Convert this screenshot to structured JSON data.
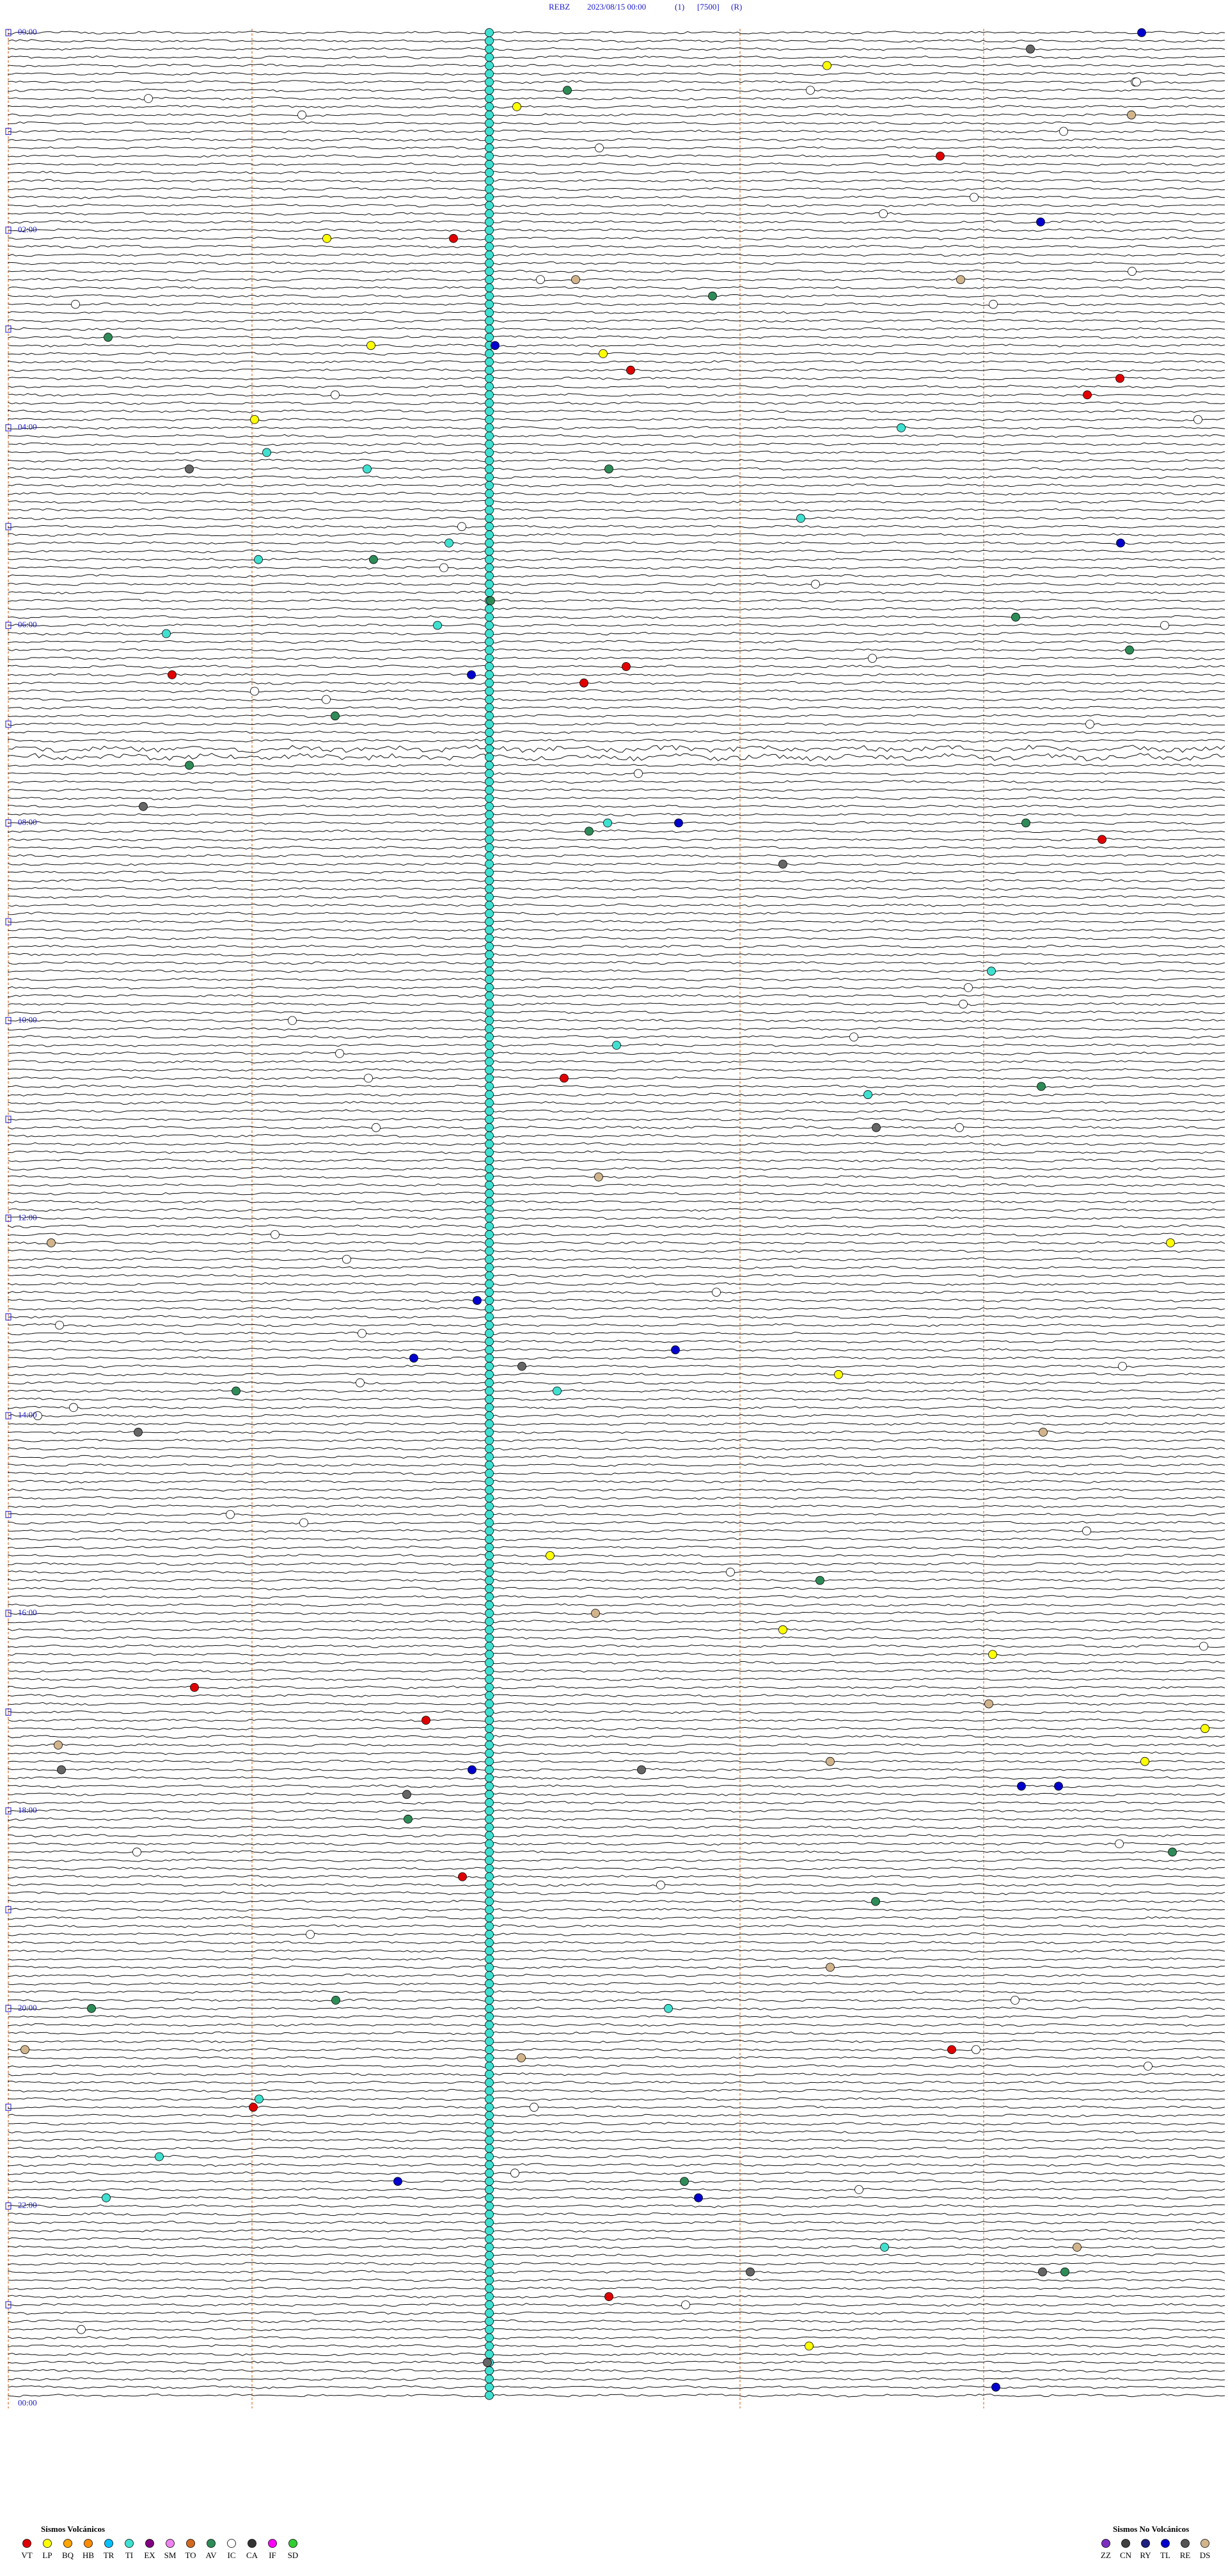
{
  "header": {
    "station": "REBZ",
    "datetime": "2023/08/15 00:00",
    "channel": "(1)",
    "scale": "[7500]",
    "mode": "(R)"
  },
  "hour_labels": [
    "00:00",
    "02:00",
    "04:00",
    "06:00",
    "08:00",
    "10:00",
    "12:00",
    "14:00",
    "16:00",
    "18:00",
    "20:00",
    "22:00",
    "00:00"
  ],
  "legend_volcanic": {
    "title": "Sismos Volcánicos",
    "items": [
      {
        "code": "VT",
        "color": "#e00000"
      },
      {
        "code": "LP",
        "color": "#ffff00"
      },
      {
        "code": "BQ",
        "color": "#ffa500"
      },
      {
        "code": "HB",
        "color": "#ff8c00"
      },
      {
        "code": "TR",
        "color": "#00bfff"
      },
      {
        "code": "TI",
        "color": "#40e0d0"
      },
      {
        "code": "EX",
        "color": "#800080"
      },
      {
        "code": "SM",
        "color": "#ee82ee"
      },
      {
        "code": "TO",
        "color": "#d2691e"
      },
      {
        "code": "AV",
        "color": "#2e8b57"
      },
      {
        "code": "IC",
        "color": "#ffffff"
      },
      {
        "code": "CA",
        "color": "#333333"
      },
      {
        "code": "IF",
        "color": "#ff00ff"
      },
      {
        "code": "SD",
        "color": "#32cd32"
      }
    ]
  },
  "legend_non_volcanic": {
    "title": "Sismos No Volcánicos",
    "items": [
      {
        "code": "ZZ",
        "color": "#7b2fbf"
      },
      {
        "code": "CN",
        "color": "#404040"
      },
      {
        "code": "RY",
        "color": "#202080"
      },
      {
        "code": "TL",
        "color": "#0000cc"
      },
      {
        "code": "RE",
        "color": "#555555"
      },
      {
        "code": "DS",
        "color": "#d2b48c"
      }
    ]
  }
}
